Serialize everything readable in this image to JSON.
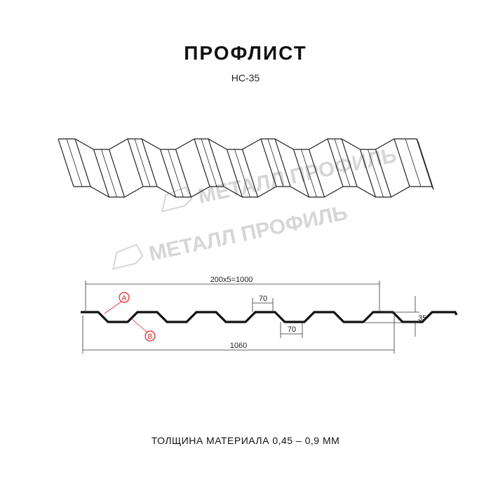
{
  "header": {
    "title": "ПРОФЛИСТ",
    "subtitle": "НС-35"
  },
  "watermark": {
    "text": "МЕТАЛЛ ПРОФИЛЬ"
  },
  "cross_section": {
    "dim_pitch": "200x5=1000",
    "dim_top_rib": "70",
    "dim_bottom_rib": "70",
    "dim_height": "35",
    "dim_total": "1060",
    "label_a": "A",
    "label_b": "B",
    "accent_color": "#d22222"
  },
  "footer": {
    "text": "ТОЛЩИНА МАТЕРИАЛА 0,45 – 0,9 ММ"
  }
}
